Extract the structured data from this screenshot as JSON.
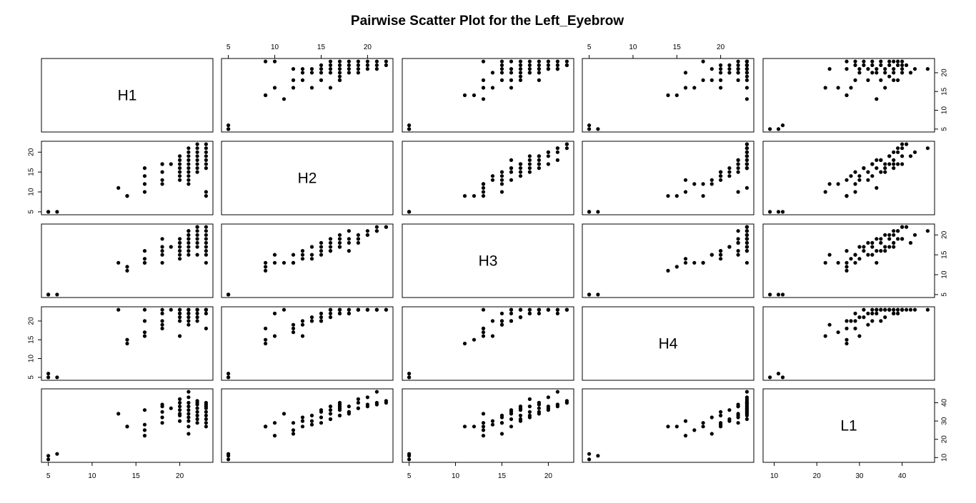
{
  "chart_data": {
    "type": "scatter",
    "subtype": "pairwise-scatter-matrix",
    "title": "Pairwise Scatter Plot for the Left_Eyebrow",
    "variables": [
      "H1",
      "H2",
      "H3",
      "H4",
      "L1"
    ],
    "ranges": {
      "H1": [
        5,
        23
      ],
      "H2": [
        5,
        22
      ],
      "H3": [
        5,
        22
      ],
      "H4": [
        5,
        23
      ],
      "L1": [
        9,
        46
      ]
    },
    "ticks": {
      "H1": [
        5,
        10,
        15,
        20
      ],
      "H2": [
        5,
        10,
        15,
        20
      ],
      "H3": [
        5,
        10,
        15,
        20
      ],
      "H4": [
        5,
        10,
        15,
        20
      ],
      "L1": [
        10,
        20,
        30,
        40
      ]
    },
    "grid": false,
    "legend": "none",
    "observations": [
      {
        "H1": 5,
        "H2": 5,
        "H3": 5,
        "H4": 5,
        "L1": 9
      },
      {
        "H1": 5,
        "H2": 5,
        "H3": 5,
        "H4": 6,
        "L1": 11
      },
      {
        "H1": 6,
        "H2": 5,
        "H3": 5,
        "H4": 5,
        "L1": 12
      },
      {
        "H1": 13,
        "H2": 11,
        "H3": 13,
        "H4": 23,
        "L1": 34
      },
      {
        "H1": 14,
        "H2": 9,
        "H3": 11,
        "H4": 14,
        "L1": 27
      },
      {
        "H1": 14,
        "H2": 9,
        "H3": 12,
        "H4": 15,
        "L1": 27
      },
      {
        "H1": 16,
        "H2": 10,
        "H3": 13,
        "H4": 16,
        "L1": 22
      },
      {
        "H1": 16,
        "H2": 12,
        "H3": 13,
        "H4": 17,
        "L1": 25
      },
      {
        "H1": 16,
        "H2": 14,
        "H3": 14,
        "H4": 20,
        "L1": 28
      },
      {
        "H1": 16,
        "H2": 16,
        "H3": 16,
        "H4": 23,
        "L1": 36
      },
      {
        "H1": 18,
        "H2": 12,
        "H3": 13,
        "H4": 18,
        "L1": 29
      },
      {
        "H1": 18,
        "H2": 13,
        "H3": 15,
        "H4": 19,
        "L1": 32
      },
      {
        "H1": 18,
        "H2": 15,
        "H3": 16,
        "H4": 20,
        "L1": 35
      },
      {
        "H1": 18,
        "H2": 17,
        "H3": 17,
        "H4": 23,
        "L1": 38
      },
      {
        "H1": 18,
        "H2": 17,
        "H3": 19,
        "H4": 22,
        "L1": 39
      },
      {
        "H1": 19,
        "H2": 17,
        "H3": 17,
        "H4": 23,
        "L1": 37
      },
      {
        "H1": 20,
        "H2": 13,
        "H3": 14,
        "H4": 16,
        "L1": 30
      },
      {
        "H1": 20,
        "H2": 14,
        "H3": 15,
        "H4": 20,
        "L1": 33
      },
      {
        "H1": 20,
        "H2": 15,
        "H3": 17,
        "H4": 21,
        "L1": 36
      },
      {
        "H1": 20,
        "H2": 16,
        "H3": 18,
        "H4": 22,
        "L1": 38
      },
      {
        "H1": 20,
        "H2": 17,
        "H3": 19,
        "H4": 23,
        "L1": 40
      },
      {
        "H1": 20,
        "H2": 18,
        "H3": 16,
        "H4": 22,
        "L1": 34
      },
      {
        "H1": 20,
        "H2": 19,
        "H3": 18,
        "H4": 23,
        "L1": 42
      },
      {
        "H1": 21,
        "H2": 12,
        "H3": 15,
        "H4": 19,
        "L1": 23
      },
      {
        "H1": 21,
        "H2": 13,
        "H3": 16,
        "H4": 20,
        "L1": 27
      },
      {
        "H1": 21,
        "H2": 14,
        "H3": 17,
        "H4": 21,
        "L1": 30
      },
      {
        "H1": 21,
        "H2": 15,
        "H3": 18,
        "H4": 22,
        "L1": 32
      },
      {
        "H1": 21,
        "H2": 16,
        "H3": 19,
        "H4": 23,
        "L1": 34
      },
      {
        "H1": 21,
        "H2": 17,
        "H3": 20,
        "H4": 23,
        "L1": 36
      },
      {
        "H1": 21,
        "H2": 18,
        "H3": 21,
        "H4": 22,
        "L1": 38
      },
      {
        "H1": 21,
        "H2": 19,
        "H3": 19,
        "H4": 23,
        "L1": 40
      },
      {
        "H1": 21,
        "H2": 20,
        "H3": 20,
        "H4": 23,
        "L1": 43
      },
      {
        "H1": 21,
        "H2": 21,
        "H3": 21,
        "H4": 23,
        "L1": 46
      },
      {
        "H1": 22,
        "H2": 15,
        "H3": 15,
        "H4": 20,
        "L1": 29
      },
      {
        "H1": 22,
        "H2": 16,
        "H3": 17,
        "H4": 21,
        "L1": 31
      },
      {
        "H1": 22,
        "H2": 17,
        "H3": 18,
        "H4": 22,
        "L1": 33
      },
      {
        "H1": 22,
        "H2": 18,
        "H3": 19,
        "H4": 23,
        "L1": 35
      },
      {
        "H1": 22,
        "H2": 19,
        "H3": 20,
        "H4": 23,
        "L1": 37
      },
      {
        "H1": 22,
        "H2": 20,
        "H3": 21,
        "H4": 23,
        "L1": 39
      },
      {
        "H1": 22,
        "H2": 21,
        "H3": 22,
        "H4": 23,
        "L1": 40
      },
      {
        "H1": 22,
        "H2": 22,
        "H3": 22,
        "H4": 23,
        "L1": 41
      },
      {
        "H1": 23,
        "H2": 9,
        "H3": 13,
        "H4": 18,
        "L1": 27
      },
      {
        "H1": 23,
        "H2": 10,
        "H3": 15,
        "H4": 22,
        "L1": 29
      },
      {
        "H1": 23,
        "H2": 16,
        "H3": 16,
        "H4": 23,
        "L1": 31
      },
      {
        "H1": 23,
        "H2": 17,
        "H3": 17,
        "H4": 23,
        "L1": 33
      },
      {
        "H1": 23,
        "H2": 18,
        "H3": 18,
        "H4": 23,
        "L1": 35
      },
      {
        "H1": 23,
        "H2": 19,
        "H3": 19,
        "H4": 23,
        "L1": 37
      },
      {
        "H1": 23,
        "H2": 20,
        "H3": 20,
        "H4": 23,
        "L1": 38
      },
      {
        "H1": 23,
        "H2": 21,
        "H3": 21,
        "H4": 23,
        "L1": 39
      },
      {
        "H1": 23,
        "H2": 22,
        "H3": 22,
        "H4": 23,
        "L1": 40
      }
    ]
  }
}
